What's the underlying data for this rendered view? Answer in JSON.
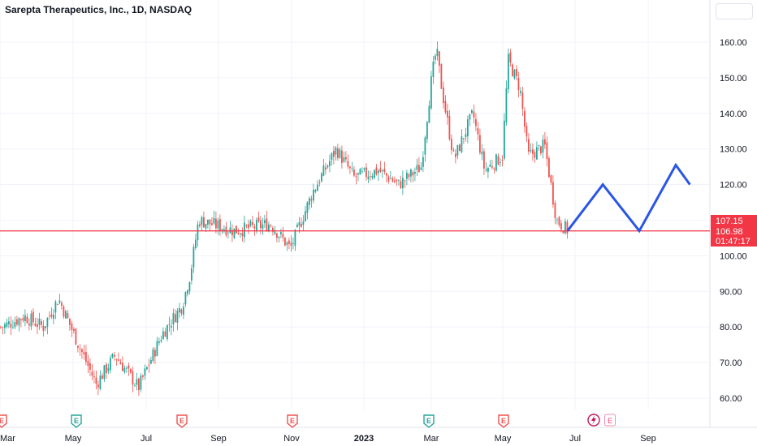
{
  "header": {
    "title": "Sarepta Therapeutics, Inc., 1D, NASDAQ"
  },
  "colors": {
    "up": "#26a69a",
    "down": "#ef5350",
    "price_line": "#f23645",
    "projection": "#2a55e5",
    "grid": "#f0f3fa",
    "axis_text": "#131722"
  },
  "price_labels": {
    "last": "107.15",
    "close": "106.98",
    "countdown": "01:47:17"
  },
  "earnings_markers": [
    {
      "label": "E",
      "type": "down"
    },
    {
      "label": "E",
      "type": "up"
    },
    {
      "label": "E",
      "type": "down"
    },
    {
      "label": "E",
      "type": "down"
    },
    {
      "label": "E",
      "type": "up"
    },
    {
      "label": "E",
      "type": "down"
    },
    {
      "label": "E",
      "type": "pending"
    }
  ],
  "chart_data": {
    "type": "candlestick",
    "title": "Sarepta Therapeutics, Inc., 1D, NASDAQ",
    "x_ticks": [
      "Mar",
      "May",
      "Jul",
      "Sep",
      "Nov",
      "2023",
      "Mar",
      "May",
      "Jul",
      "Sep"
    ],
    "y_ticks": [
      "60.00",
      "70.00",
      "80.00",
      "90.00",
      "100.00",
      "110.00",
      "120.00",
      "130.00",
      "140.00",
      "150.00",
      "160.00"
    ],
    "ylim": [
      58,
      163
    ],
    "horizontal_line": 106.98,
    "price_path": [
      {
        "date": "2022-03-01",
        "close": 80
      },
      {
        "date": "2022-03-20",
        "close": 83
      },
      {
        "date": "2022-04-05",
        "close": 80
      },
      {
        "date": "2022-04-18",
        "close": 88
      },
      {
        "date": "2022-05-05",
        "close": 75
      },
      {
        "date": "2022-05-20",
        "close": 64
      },
      {
        "date": "2022-06-05",
        "close": 72
      },
      {
        "date": "2022-06-25",
        "close": 63
      },
      {
        "date": "2022-07-15",
        "close": 78
      },
      {
        "date": "2022-08-01",
        "close": 86
      },
      {
        "date": "2022-08-08",
        "close": 95
      },
      {
        "date": "2022-08-15",
        "close": 110
      },
      {
        "date": "2022-09-15",
        "close": 107
      },
      {
        "date": "2022-10-15",
        "close": 109
      },
      {
        "date": "2022-11-01",
        "close": 102
      },
      {
        "date": "2022-11-20",
        "close": 118
      },
      {
        "date": "2022-12-10",
        "close": 130
      },
      {
        "date": "2022-12-25",
        "close": 122
      },
      {
        "date": "2023-01-15",
        "close": 124
      },
      {
        "date": "2023-02-01",
        "close": 120
      },
      {
        "date": "2023-02-20",
        "close": 125
      },
      {
        "date": "2023-03-01",
        "close": 150
      },
      {
        "date": "2023-03-05",
        "close": 158
      },
      {
        "date": "2023-03-10",
        "close": 146
      },
      {
        "date": "2023-03-20",
        "close": 127
      },
      {
        "date": "2023-04-05",
        "close": 140
      },
      {
        "date": "2023-04-15",
        "close": 124
      },
      {
        "date": "2023-04-30",
        "close": 128
      },
      {
        "date": "2023-05-05",
        "close": 155
      },
      {
        "date": "2023-05-15",
        "close": 147
      },
      {
        "date": "2023-05-22",
        "close": 128
      },
      {
        "date": "2023-06-05",
        "close": 131
      },
      {
        "date": "2023-06-15",
        "close": 110
      },
      {
        "date": "2023-06-25",
        "close": 107
      }
    ],
    "projection_path": [
      {
        "date": "2023-06-25",
        "value": 107
      },
      {
        "date": "2023-07-25",
        "value": 120
      },
      {
        "date": "2023-08-25",
        "value": 107
      },
      {
        "date": "2023-09-25",
        "value": 125.5
      },
      {
        "date": "2023-10-07",
        "value": 120
      }
    ]
  }
}
